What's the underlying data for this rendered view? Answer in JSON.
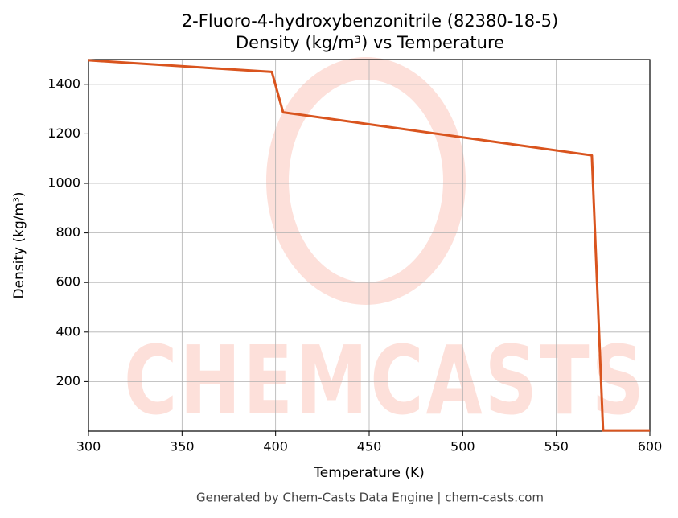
{
  "chart_data": {
    "type": "line",
    "title": "2-Fluoro-4-hydroxybenzonitrile (82380-18-5)",
    "subtitle": "Density (kg/m³) vs Temperature",
    "x_label": "Temperature (K)",
    "y_label": "Density (kg/m³)",
    "watermark": "CHEMCASTS",
    "footer": "Generated by Chem-Casts Data Engine | chem-casts.com",
    "x": [
      300,
      398,
      404,
      569,
      575,
      600
    ],
    "series": [
      {
        "name": "Density",
        "color": "#d9541e",
        "values": [
          1497,
          1450,
          1287,
          1113,
          3,
          3
        ]
      }
    ],
    "xlim": [
      300,
      600
    ],
    "xticks": [
      300,
      350,
      400,
      450,
      500,
      550,
      600
    ],
    "ylim": [
      0,
      1500
    ],
    "yticks": [
      200,
      400,
      600,
      800,
      1000,
      1200,
      1400
    ],
    "grid": true
  }
}
